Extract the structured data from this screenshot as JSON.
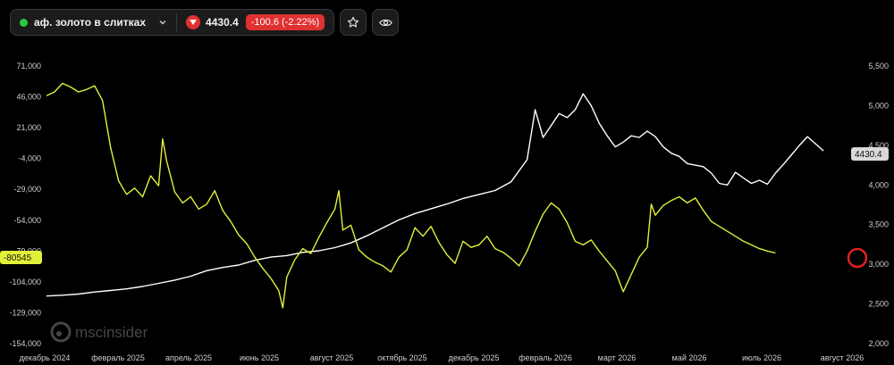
{
  "header": {
    "symbol": "аф. золото в слитках",
    "price": "4430.4",
    "change": "-100.6 (-2.22%)"
  },
  "icons": {
    "status": "status-dot",
    "dropdown": "chevron-down-icon",
    "direction": "triangle-down-icon",
    "watch": "star-icon",
    "view": "eye-icon"
  },
  "colors": {
    "price_line": "#ffffff",
    "indicator_line": "#e3f03a",
    "negative": "#e03131",
    "status": "#27c93f"
  },
  "watermark": "mscinsider",
  "chart_data": {
    "type": "line",
    "x_labels": [
      "декабрь 2024",
      "февраль 2025",
      "апрель 2025",
      "июнь 2025",
      "август 2025",
      "октябрь 2025",
      "декабрь 2025",
      "февраль 2026",
      "март 2026",
      "май 2026",
      "июль 2026",
      "август 2026"
    ],
    "left_ticks": [
      "71,000",
      "46,000",
      "21,000",
      "-4,000",
      "-29,000",
      "-54,000",
      "-79,000",
      "-104,000",
      "-129,000",
      "-154,000"
    ],
    "right_ticks": [
      "5,500",
      "5,000",
      "4,500",
      "4,000",
      "3,500",
      "3,000",
      "2,500",
      "2,000"
    ],
    "left_ylim": [
      -154000,
      71000
    ],
    "right_ylim": [
      2000,
      5500
    ],
    "left_last_label": "-80545",
    "right_last_label": "4430.4",
    "series": [
      {
        "axis": "right",
        "color": "#ffffff",
        "points": [
          [
            0.0,
            2600
          ],
          [
            0.02,
            2610
          ],
          [
            0.04,
            2625
          ],
          [
            0.06,
            2650
          ],
          [
            0.08,
            2670
          ],
          [
            0.1,
            2690
          ],
          [
            0.12,
            2720
          ],
          [
            0.14,
            2760
          ],
          [
            0.16,
            2800
          ],
          [
            0.18,
            2850
          ],
          [
            0.2,
            2920
          ],
          [
            0.22,
            2960
          ],
          [
            0.24,
            2990
          ],
          [
            0.26,
            3050
          ],
          [
            0.28,
            3090
          ],
          [
            0.3,
            3110
          ],
          [
            0.32,
            3150
          ],
          [
            0.34,
            3170
          ],
          [
            0.36,
            3210
          ],
          [
            0.38,
            3270
          ],
          [
            0.4,
            3360
          ],
          [
            0.42,
            3460
          ],
          [
            0.44,
            3560
          ],
          [
            0.46,
            3640
          ],
          [
            0.48,
            3700
          ],
          [
            0.5,
            3760
          ],
          [
            0.52,
            3830
          ],
          [
            0.54,
            3880
          ],
          [
            0.56,
            3930
          ],
          [
            0.58,
            4040
          ],
          [
            0.6,
            4320
          ],
          [
            0.61,
            4950
          ],
          [
            0.62,
            4600
          ],
          [
            0.63,
            4750
          ],
          [
            0.64,
            4900
          ],
          [
            0.65,
            4850
          ],
          [
            0.66,
            4950
          ],
          [
            0.67,
            5150
          ],
          [
            0.68,
            5000
          ],
          [
            0.69,
            4780
          ],
          [
            0.7,
            4620
          ],
          [
            0.71,
            4480
          ],
          [
            0.72,
            4540
          ],
          [
            0.73,
            4620
          ],
          [
            0.74,
            4600
          ],
          [
            0.75,
            4680
          ],
          [
            0.76,
            4610
          ],
          [
            0.77,
            4480
          ],
          [
            0.78,
            4400
          ],
          [
            0.79,
            4360
          ],
          [
            0.8,
            4270
          ],
          [
            0.81,
            4250
          ],
          [
            0.82,
            4230
          ],
          [
            0.83,
            4150
          ],
          [
            0.84,
            4020
          ],
          [
            0.85,
            4000
          ],
          [
            0.86,
            4160
          ],
          [
            0.87,
            4090
          ],
          [
            0.88,
            4020
          ],
          [
            0.89,
            4060
          ],
          [
            0.9,
            4010
          ],
          [
            0.91,
            4150
          ],
          [
            0.92,
            4260
          ],
          [
            0.93,
            4380
          ],
          [
            0.94,
            4500
          ],
          [
            0.95,
            4610
          ],
          [
            0.96,
            4520
          ],
          [
            0.97,
            4430.4
          ]
        ]
      },
      {
        "axis": "left",
        "color": "#e3f03a",
        "points": [
          [
            0.0,
            47000
          ],
          [
            0.01,
            50000
          ],
          [
            0.02,
            57000
          ],
          [
            0.03,
            54000
          ],
          [
            0.04,
            50000
          ],
          [
            0.05,
            52000
          ],
          [
            0.06,
            55000
          ],
          [
            0.07,
            43000
          ],
          [
            0.08,
            5000
          ],
          [
            0.09,
            -22000
          ],
          [
            0.1,
            -33000
          ],
          [
            0.11,
            -28000
          ],
          [
            0.12,
            -35000
          ],
          [
            0.13,
            -18000
          ],
          [
            0.14,
            -26000
          ],
          [
            0.145,
            12000
          ],
          [
            0.15,
            -6000
          ],
          [
            0.16,
            -31000
          ],
          [
            0.17,
            -40000
          ],
          [
            0.18,
            -35000
          ],
          [
            0.19,
            -45000
          ],
          [
            0.2,
            -41000
          ],
          [
            0.21,
            -30000
          ],
          [
            0.22,
            -46000
          ],
          [
            0.23,
            -55000
          ],
          [
            0.24,
            -66000
          ],
          [
            0.25,
            -73000
          ],
          [
            0.26,
            -84000
          ],
          [
            0.27,
            -93000
          ],
          [
            0.28,
            -101000
          ],
          [
            0.29,
            -111000
          ],
          [
            0.295,
            -125000
          ],
          [
            0.3,
            -100000
          ],
          [
            0.31,
            -86000
          ],
          [
            0.32,
            -77000
          ],
          [
            0.33,
            -81000
          ],
          [
            0.34,
            -68000
          ],
          [
            0.35,
            -56000
          ],
          [
            0.36,
            -45000
          ],
          [
            0.365,
            -30000
          ],
          [
            0.37,
            -62000
          ],
          [
            0.38,
            -58000
          ],
          [
            0.39,
            -78000
          ],
          [
            0.4,
            -84000
          ],
          [
            0.41,
            -88000
          ],
          [
            0.42,
            -91000
          ],
          [
            0.43,
            -96000
          ],
          [
            0.44,
            -84000
          ],
          [
            0.45,
            -78000
          ],
          [
            0.46,
            -60000
          ],
          [
            0.47,
            -67000
          ],
          [
            0.48,
            -59000
          ],
          [
            0.49,
            -72000
          ],
          [
            0.5,
            -82000
          ],
          [
            0.51,
            -89000
          ],
          [
            0.52,
            -71000
          ],
          [
            0.53,
            -76000
          ],
          [
            0.54,
            -74000
          ],
          [
            0.55,
            -67000
          ],
          [
            0.56,
            -77000
          ],
          [
            0.57,
            -80000
          ],
          [
            0.58,
            -85000
          ],
          [
            0.59,
            -91000
          ],
          [
            0.6,
            -79000
          ],
          [
            0.61,
            -63000
          ],
          [
            0.62,
            -49000
          ],
          [
            0.63,
            -40000
          ],
          [
            0.64,
            -45000
          ],
          [
            0.65,
            -56000
          ],
          [
            0.66,
            -71000
          ],
          [
            0.67,
            -74000
          ],
          [
            0.68,
            -70000
          ],
          [
            0.69,
            -79000
          ],
          [
            0.7,
            -87000
          ],
          [
            0.71,
            -95000
          ],
          [
            0.72,
            -112000
          ],
          [
            0.73,
            -98000
          ],
          [
            0.74,
            -84000
          ],
          [
            0.75,
            -76000
          ],
          [
            0.755,
            -41000
          ],
          [
            0.76,
            -50000
          ],
          [
            0.77,
            -42000
          ],
          [
            0.78,
            -38000
          ],
          [
            0.79,
            -35000
          ],
          [
            0.8,
            -40000
          ],
          [
            0.81,
            -36000
          ],
          [
            0.82,
            -46000
          ],
          [
            0.83,
            -55000
          ],
          [
            0.84,
            -59000
          ],
          [
            0.85,
            -63000
          ],
          [
            0.86,
            -67000
          ],
          [
            0.87,
            -71000
          ],
          [
            0.88,
            -74000
          ],
          [
            0.89,
            -77000
          ],
          [
            0.9,
            -79000
          ],
          [
            0.91,
            -80545
          ]
        ]
      }
    ]
  }
}
